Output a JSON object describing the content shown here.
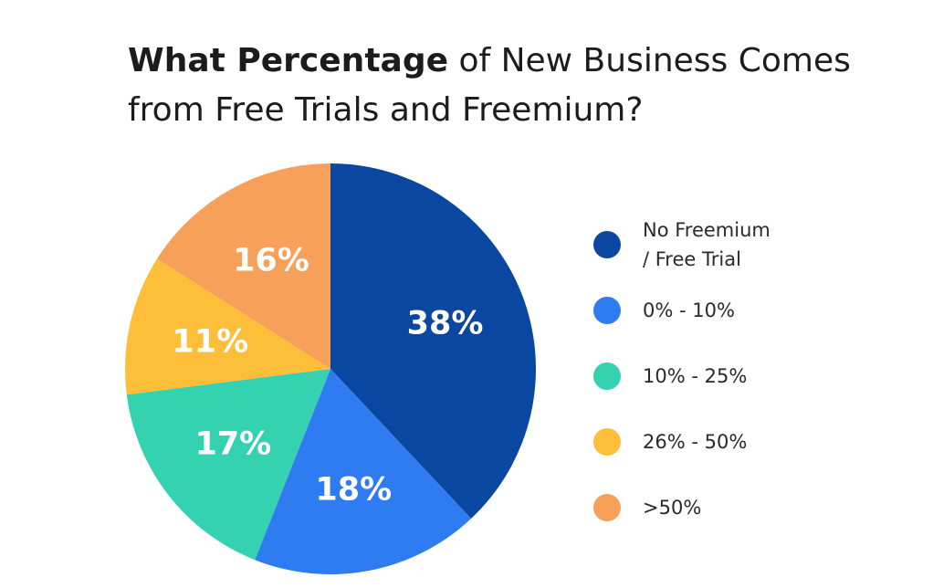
{
  "title": {
    "bold": "What Percentage",
    "rest": " of New Business Comes from Free Trials and Freemium?"
  },
  "chart_data": {
    "type": "pie",
    "title": "What Percentage of New Business Comes from Free Trials and Freemium?",
    "legend_position": "right",
    "slices": [
      {
        "label": "No Freemium / Free Trial",
        "legend_label": "No Freemium\n/ Free Trial",
        "value": 38,
        "value_label": "38%",
        "color": "#0a47a0"
      },
      {
        "label": "0% - 10%",
        "legend_label": "0% - 10%",
        "value": 18,
        "value_label": "18%",
        "color": "#2f7cf2"
      },
      {
        "label": "10% - 25%",
        "legend_label": "10% - 25%",
        "value": 17,
        "value_label": "17%",
        "color": "#34d2b0"
      },
      {
        "label": "26% - 50%",
        "legend_label": "26% - 50%",
        "value": 11,
        "value_label": "11%",
        "color": "#fdbe3a"
      },
      {
        "label": ">50%",
        "legend_label": ">50%",
        "value": 16,
        "value_label": "16%",
        "color": "#f6a05a"
      }
    ]
  }
}
